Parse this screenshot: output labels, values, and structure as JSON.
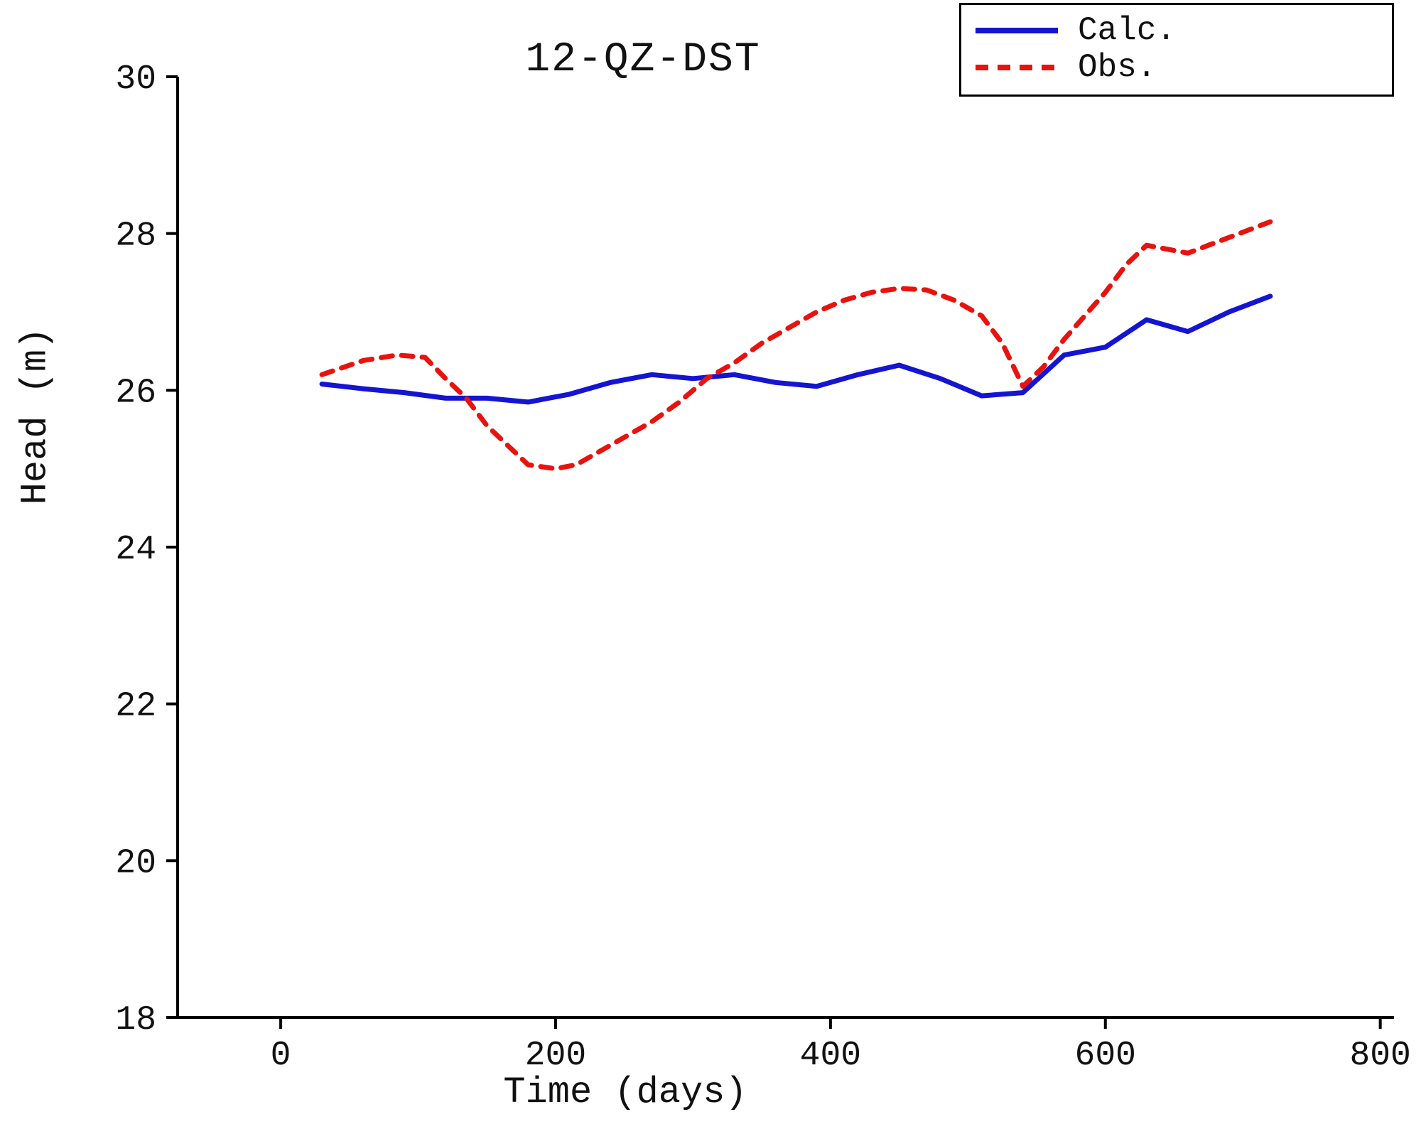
{
  "chart_data": {
    "type": "line",
    "title": "12-QZ-DST",
    "xlabel": "Time (days)",
    "ylabel": "Head (m)",
    "xlim": [
      -75,
      810
    ],
    "ylim": [
      18,
      30
    ],
    "xticks": [
      0,
      200,
      400,
      600,
      800
    ],
    "yticks": [
      18,
      20,
      22,
      24,
      26,
      28,
      30
    ],
    "grid": false,
    "legend_position": "top-right",
    "axis_color": "#000000",
    "series": [
      {
        "name": "Calc.",
        "color": "#1414d2",
        "style": "solid",
        "points": [
          [
            30,
            26.08
          ],
          [
            60,
            26.02
          ],
          [
            90,
            25.97
          ],
          [
            120,
            25.9
          ],
          [
            150,
            25.9
          ],
          [
            180,
            25.85
          ],
          [
            210,
            25.95
          ],
          [
            240,
            26.1
          ],
          [
            270,
            26.2
          ],
          [
            300,
            26.15
          ],
          [
            330,
            26.2
          ],
          [
            360,
            26.1
          ],
          [
            390,
            26.05
          ],
          [
            420,
            26.2
          ],
          [
            450,
            26.32
          ],
          [
            480,
            26.15
          ],
          [
            510,
            25.93
          ],
          [
            540,
            25.97
          ],
          [
            570,
            26.45
          ],
          [
            600,
            26.55
          ],
          [
            630,
            26.9
          ],
          [
            660,
            26.75
          ],
          [
            690,
            27.0
          ],
          [
            720,
            27.2
          ]
        ]
      },
      {
        "name": "Obs.",
        "color": "#e8130e",
        "style": "dashed",
        "points": [
          [
            30,
            26.2
          ],
          [
            60,
            26.38
          ],
          [
            85,
            26.45
          ],
          [
            105,
            26.42
          ],
          [
            120,
            26.15
          ],
          [
            135,
            25.9
          ],
          [
            150,
            25.55
          ],
          [
            165,
            25.3
          ],
          [
            180,
            25.05
          ],
          [
            200,
            25.0
          ],
          [
            215,
            25.05
          ],
          [
            230,
            25.2
          ],
          [
            250,
            25.4
          ],
          [
            270,
            25.6
          ],
          [
            290,
            25.85
          ],
          [
            310,
            26.15
          ],
          [
            330,
            26.35
          ],
          [
            350,
            26.6
          ],
          [
            370,
            26.8
          ],
          [
            390,
            27.0
          ],
          [
            410,
            27.15
          ],
          [
            430,
            27.25
          ],
          [
            450,
            27.3
          ],
          [
            470,
            27.28
          ],
          [
            490,
            27.15
          ],
          [
            510,
            26.95
          ],
          [
            525,
            26.6
          ],
          [
            540,
            26.05
          ],
          [
            555,
            26.3
          ],
          [
            570,
            26.65
          ],
          [
            585,
            26.95
          ],
          [
            600,
            27.25
          ],
          [
            615,
            27.6
          ],
          [
            630,
            27.85
          ],
          [
            645,
            27.8
          ],
          [
            660,
            27.75
          ],
          [
            675,
            27.85
          ],
          [
            690,
            27.95
          ],
          [
            705,
            28.05
          ],
          [
            720,
            28.15
          ]
        ]
      }
    ]
  }
}
